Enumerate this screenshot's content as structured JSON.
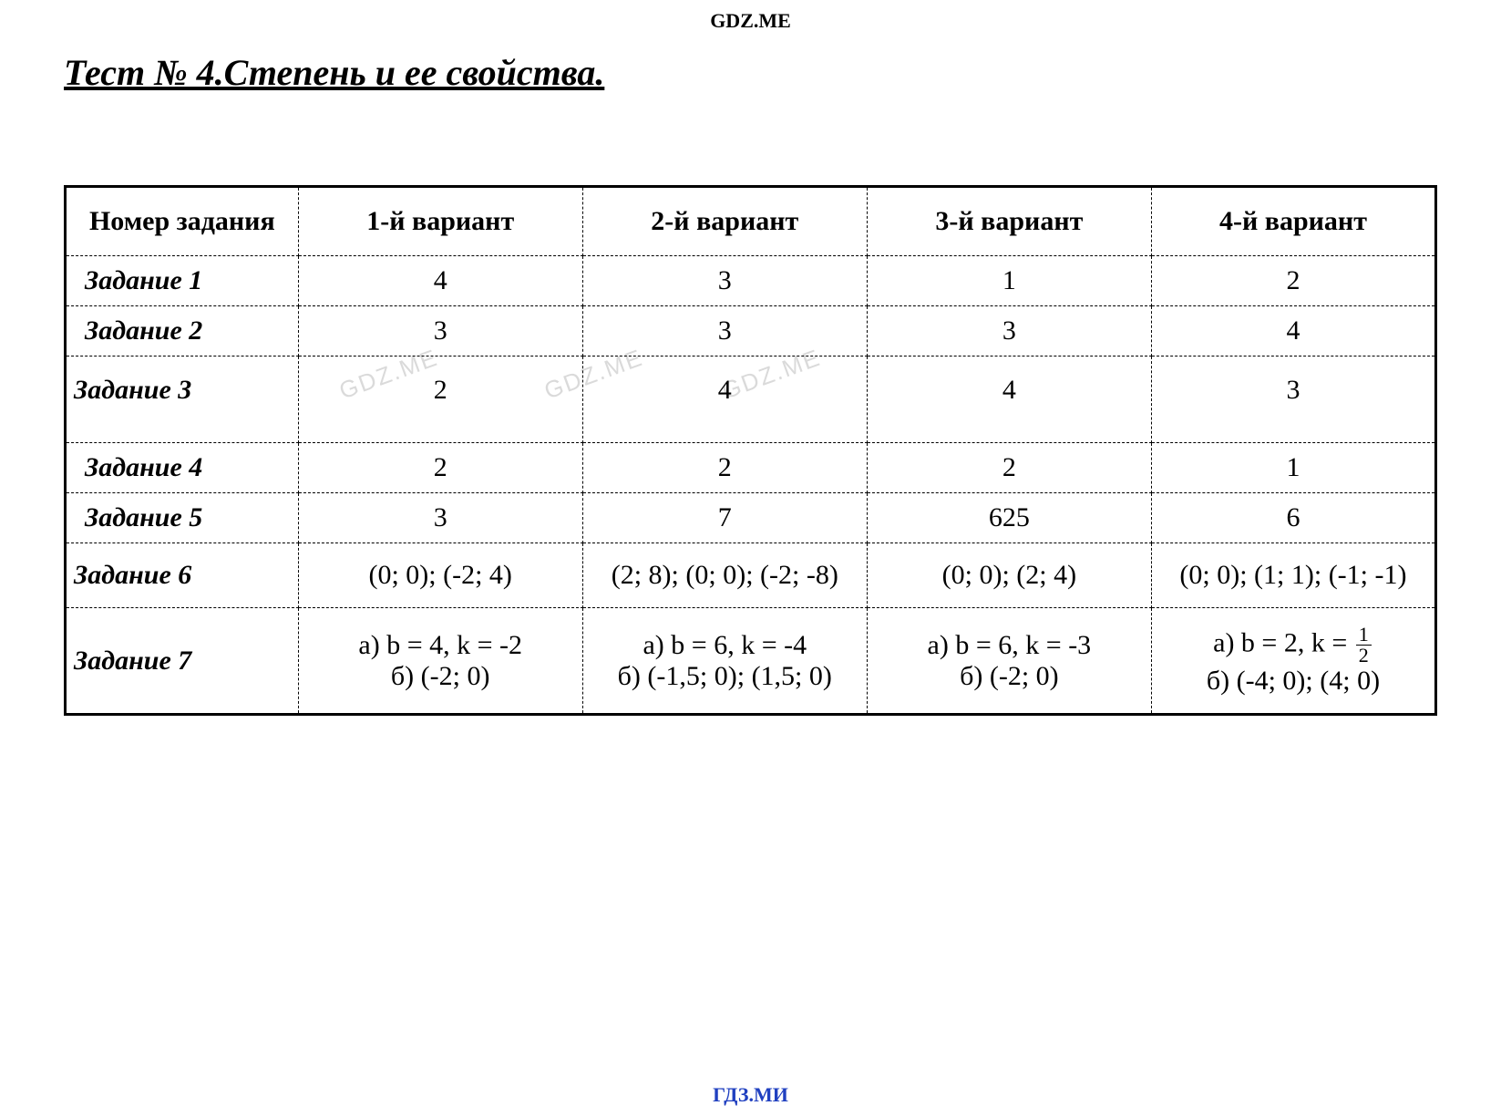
{
  "header_watermark": "GDZ.ME",
  "footer_watermark": "ГДЗ.МИ",
  "bg_watermark": "GDZ.ME",
  "page_title": "Тест № 4.Степень и ее свойства.",
  "table": {
    "columns": [
      "Номер задания",
      "1-й вариант",
      "2-й вариант",
      "3-й вариант",
      "4-й вариант"
    ],
    "rows": [
      {
        "label": "Задание 1",
        "cells": [
          "4",
          "3",
          "1",
          "2"
        ]
      },
      {
        "label": "Задание 2",
        "cells": [
          "3",
          "3",
          "3",
          "4"
        ]
      },
      {
        "label": "Задание 3",
        "cells": [
          "2",
          "4",
          "4",
          "3"
        ]
      },
      {
        "label": "Задание 4",
        "cells": [
          "2",
          "2",
          "2",
          "1"
        ]
      },
      {
        "label": "Задание 5",
        "cells": [
          "3",
          "7",
          "625",
          "6"
        ]
      },
      {
        "label": "Задание 6",
        "cells": [
          "(0; 0); (-2; 4)",
          "(2; 8); (0; 0); (-2; -8)",
          "(0; 0); (2; 4)",
          "(0; 0); (1; 1); (-1; -1)"
        ]
      },
      {
        "label": "Задание 7",
        "cells": [
          "а) b = 4, k = -2\nб) (-2; 0)",
          "а) b = 6, k = -4\nб) (-1,5; 0); (1,5; 0)",
          "а) b = 6, k = -3\nб) (-2; 0)",
          {
            "type": "fraction_cell",
            "line1_prefix": "а) b = 2, k = ",
            "frac_top": "1",
            "frac_bot": "2",
            "line2": "б) (-4; 0); (4; 0)"
          }
        ]
      }
    ]
  },
  "styling": {
    "background_color": "#ffffff",
    "text_color": "#000000",
    "footer_color": "#2040c0",
    "watermark_color": "rgba(150,150,150,0.35)",
    "title_fontsize": 40,
    "cell_fontsize": 30,
    "border_style_outer": "3px solid #000000",
    "border_style_inner": "1px dashed #000000",
    "font_family": "Times New Roman"
  }
}
